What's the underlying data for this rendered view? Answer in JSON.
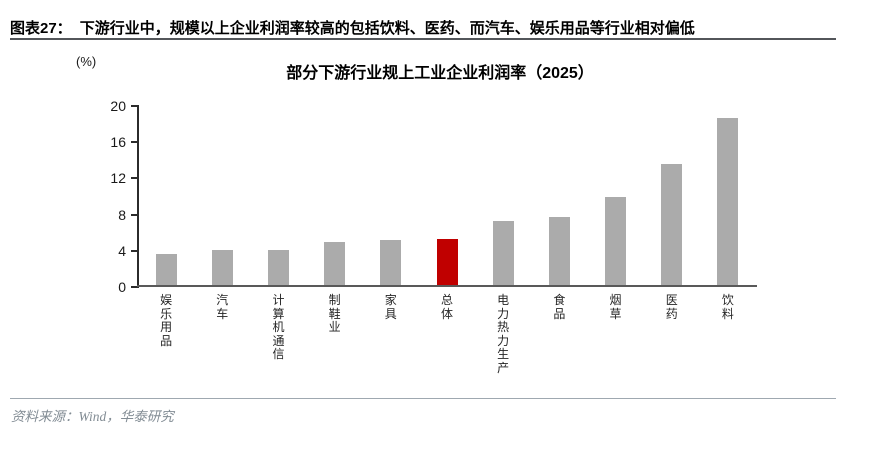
{
  "header": {
    "label": "图表27：",
    "title": "下游行业中，规模以上企业利润率较高的包括饮料、医药、而汽车、娱乐用品等行业相对偏低"
  },
  "footer": {
    "source": "资料来源：Wind，华泰研究"
  },
  "chart_data": {
    "type": "bar",
    "title": "部分下游行业规上工业企业利润率（2025）",
    "unit_label": "(%)",
    "categories": [
      "娱乐用品",
      "汽车",
      "计算机通信",
      "制鞋业",
      "家具",
      "总体",
      "电力热力生产",
      "食品",
      "烟草",
      "医药",
      "饮料"
    ],
    "values": [
      3.7,
      4.1,
      4.1,
      5.0,
      5.2,
      5.3,
      7.3,
      7.7,
      9.9,
      13.6,
      18.7
    ],
    "highlight_category": "总体",
    "highlight_index": 5,
    "bar_color": "#ababab",
    "highlight_color": "#c00000",
    "yticks": [
      0,
      4,
      8,
      12,
      16,
      20
    ],
    "ylim": [
      0,
      20
    ],
    "xlabel": "",
    "ylabel": "(%)",
    "grid": false,
    "legend_position": "none"
  }
}
